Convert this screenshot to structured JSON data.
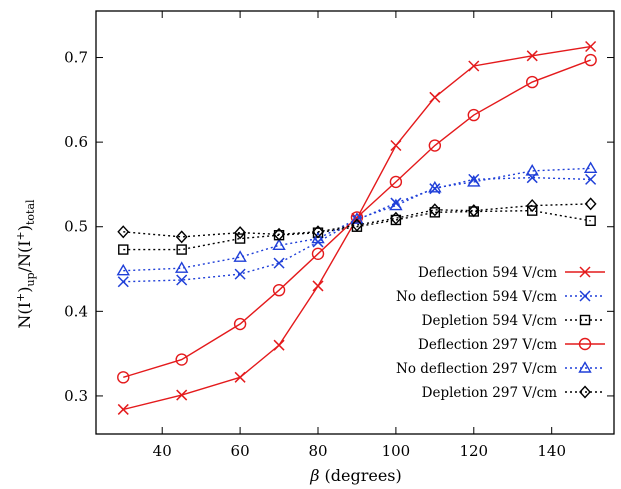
{
  "chart_data": {
    "type": "line",
    "xlabel_symbol": "β",
    "xlabel_text": "(degrees)",
    "ylabel": {
      "n1": "N(I",
      "sup1": "+",
      "c1": ")",
      "sub1": "up",
      "slash": "/N(I",
      "sup2": "+",
      "c2": ")",
      "sub2": "total"
    },
    "xlim": [
      23,
      156
    ],
    "ylim": [
      0.255,
      0.755
    ],
    "xticks": [
      40,
      60,
      80,
      100,
      120,
      140
    ],
    "xtick_labels": [
      "40",
      "60",
      "80",
      "100",
      "120",
      "140"
    ],
    "yticks": [
      0.3,
      0.4,
      0.5,
      0.6,
      0.7
    ],
    "ytick_labels": [
      "0.3",
      "0.4",
      "0.5",
      "0.6",
      "0.7"
    ],
    "legend_position": "bottom-right",
    "series": [
      {
        "name": "Deflection 594 V/cm",
        "color": "#e41a1c",
        "marker": "x",
        "dash": "solid",
        "x": [
          30,
          45,
          60,
          70,
          80,
          90,
          100,
          110,
          120,
          135,
          150
        ],
        "y": [
          0.284,
          0.301,
          0.322,
          0.36,
          0.43,
          0.51,
          0.596,
          0.653,
          0.69,
          0.702,
          0.713
        ]
      },
      {
        "name": "No deflection 594 V/cm",
        "color": "#1f3fd8",
        "marker": "x",
        "dash": "dotted",
        "x": [
          30,
          45,
          60,
          70,
          80,
          90,
          100,
          110,
          120,
          135,
          150
        ],
        "y": [
          0.435,
          0.437,
          0.444,
          0.457,
          0.482,
          0.508,
          0.528,
          0.545,
          0.556,
          0.558,
          0.556
        ]
      },
      {
        "name": "Depletion 594 V/cm",
        "color": "#000000",
        "marker": "square",
        "dash": "dotted",
        "x": [
          30,
          45,
          60,
          70,
          80,
          90,
          100,
          110,
          120,
          135,
          150
        ],
        "y": [
          0.473,
          0.473,
          0.486,
          0.49,
          0.493,
          0.5,
          0.508,
          0.517,
          0.518,
          0.519,
          0.507
        ]
      },
      {
        "name": "Deflection 297 V/cm",
        "color": "#e41a1c",
        "marker": "circle",
        "dash": "solid",
        "x": [
          30,
          45,
          60,
          70,
          80,
          90,
          100,
          110,
          120,
          135,
          150
        ],
        "y": [
          0.322,
          0.343,
          0.385,
          0.425,
          0.468,
          0.511,
          0.553,
          0.596,
          0.632,
          0.671,
          0.697
        ]
      },
      {
        "name": "No deflection 297 V/cm",
        "color": "#1f3fd8",
        "marker": "triangle",
        "dash": "dotted",
        "x": [
          30,
          45,
          60,
          70,
          80,
          90,
          100,
          110,
          120,
          135,
          150
        ],
        "y": [
          0.448,
          0.451,
          0.464,
          0.478,
          0.486,
          0.509,
          0.525,
          0.546,
          0.553,
          0.566,
          0.569
        ]
      },
      {
        "name": "Depletion 297 V/cm",
        "color": "#000000",
        "marker": "diamond",
        "dash": "dotted",
        "x": [
          30,
          45,
          60,
          70,
          80,
          90,
          100,
          110,
          120,
          135,
          150
        ],
        "y": [
          0.494,
          0.488,
          0.493,
          0.491,
          0.494,
          0.502,
          0.51,
          0.52,
          0.519,
          0.525,
          0.527
        ]
      }
    ]
  }
}
